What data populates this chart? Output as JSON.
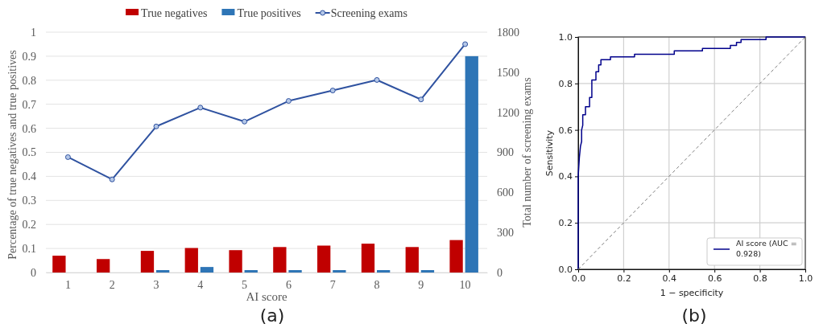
{
  "chart_data": [
    {
      "type": "bar",
      "categories": [
        "1",
        "2",
        "3",
        "4",
        "5",
        "6",
        "7",
        "8",
        "9",
        "10"
      ],
      "xlabel": "AI score",
      "ylabel": "Percentage of true negatives and true positives",
      "y2label": "Total number of screening exams",
      "ylim": [
        0,
        1
      ],
      "yticks": [
        0,
        0.1,
        0.2,
        0.3,
        0.4,
        0.5,
        0.6,
        0.7,
        0.8,
        0.9,
        1
      ],
      "y2lim": [
        0,
        1800
      ],
      "y2ticks": [
        0,
        300,
        600,
        900,
        1200,
        1500,
        1800
      ],
      "grid": "y",
      "legend": "top",
      "marker": "circle",
      "series": [
        {
          "name": "True negatives",
          "color": "#c00000",
          "values": [
            0.07,
            0.056,
            0.09,
            0.102,
            0.093,
            0.106,
            0.112,
            0.12,
            0.106,
            0.135
          ]
        },
        {
          "name": "True positives",
          "color": "#2e75b6",
          "values": [
            0,
            0,
            0.01,
            0.023,
            0.01,
            0.01,
            0.01,
            0.01,
            0.01,
            0.9
          ]
        },
        {
          "name": "Screening exams",
          "type": "line",
          "axis": "y2",
          "color": "#2f52a0",
          "values": [
            864,
            697,
            1094,
            1235,
            1130,
            1285,
            1363,
            1442,
            1296,
            1710
          ]
        }
      ],
      "annotations": [
        "(a)"
      ]
    },
    {
      "type": "line",
      "xlabel": "1 − specificity",
      "ylabel": "Sensitivity",
      "xlim": [
        0,
        1
      ],
      "ylim": [
        0,
        1
      ],
      "xticks": [
        {
          "value": 0,
          "label": "0.0"
        },
        0.2,
        0.4,
        0.6,
        0.8,
        {
          "value": 1,
          "label": "1.0"
        }
      ],
      "yticks": [
        {
          "value": 0,
          "label": "0.0"
        },
        0.2,
        0.4,
        0.6,
        0.8,
        {
          "value": 1,
          "label": "1.0"
        }
      ],
      "grid": true,
      "legend": "bottom right",
      "series": [
        {
          "name": "AI score (AUC = 0.928)",
          "color": "#00008b",
          "x": [
            0,
            0,
            0.005,
            0.01,
            0.015,
            0.015,
            0.02,
            0.02,
            0.032,
            0.032,
            0.05,
            0.05,
            0.06,
            0.06,
            0.078,
            0.078,
            0.09,
            0.09,
            0.1,
            0.1,
            0.142,
            0.142,
            0.248,
            0.248,
            0.423,
            0.423,
            0.547,
            0.547,
            0.67,
            0.67,
            0.697,
            0.697,
            0.717,
            0.717,
            0.827,
            0.827,
            1
          ],
          "values": [
            0,
            0.4,
            0.48,
            0.53,
            0.55,
            0.6,
            0.62,
            0.665,
            0.665,
            0.7,
            0.7,
            0.74,
            0.74,
            0.815,
            0.815,
            0.85,
            0.85,
            0.88,
            0.88,
            0.902,
            0.902,
            0.914,
            0.914,
            0.926,
            0.926,
            0.94,
            0.94,
            0.951,
            0.951,
            0.964,
            0.964,
            0.977,
            0.977,
            0.989,
            0.989,
            1,
            1
          ]
        },
        {
          "color": "#808080",
          "line_style": "dashed",
          "x": [
            0,
            1
          ],
          "values": [
            0,
            1
          ]
        }
      ],
      "annotations": [
        "(b)"
      ]
    }
  ]
}
